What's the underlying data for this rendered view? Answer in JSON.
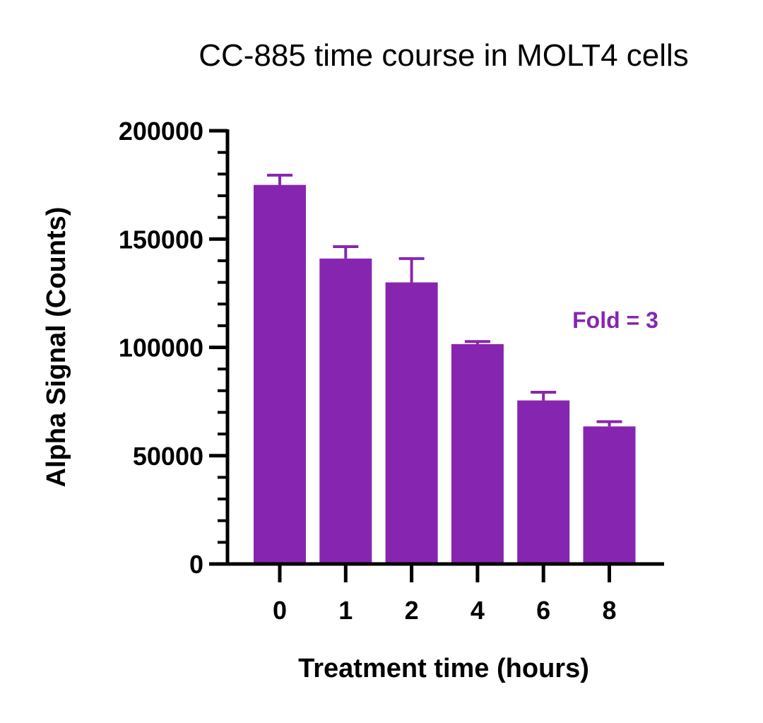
{
  "chart_data": {
    "type": "bar",
    "title": "CC-885 time course in MOLT4 cells",
    "xlabel": "Treatment time (hours)",
    "ylabel": "Alpha Signal (Counts)",
    "categories": [
      "0",
      "1",
      "2",
      "4",
      "6",
      "8"
    ],
    "values": [
      175000,
      141000,
      130000,
      101500,
      75500,
      63500
    ],
    "error_upper": [
      4500,
      5500,
      11000,
      1200,
      3800,
      2200
    ],
    "ylim": [
      0,
      200000
    ],
    "yticks": [
      0,
      50000,
      100000,
      150000,
      200000
    ],
    "ytick_labels": [
      "0",
      "50000",
      "100000",
      "150000",
      "200000"
    ],
    "ytick_minor_step": 10000,
    "grid": false,
    "annotation": "Fold = 3",
    "colors": {
      "bar": "#8626B0",
      "annotation": "#8626B0",
      "axis": "#000000"
    }
  }
}
